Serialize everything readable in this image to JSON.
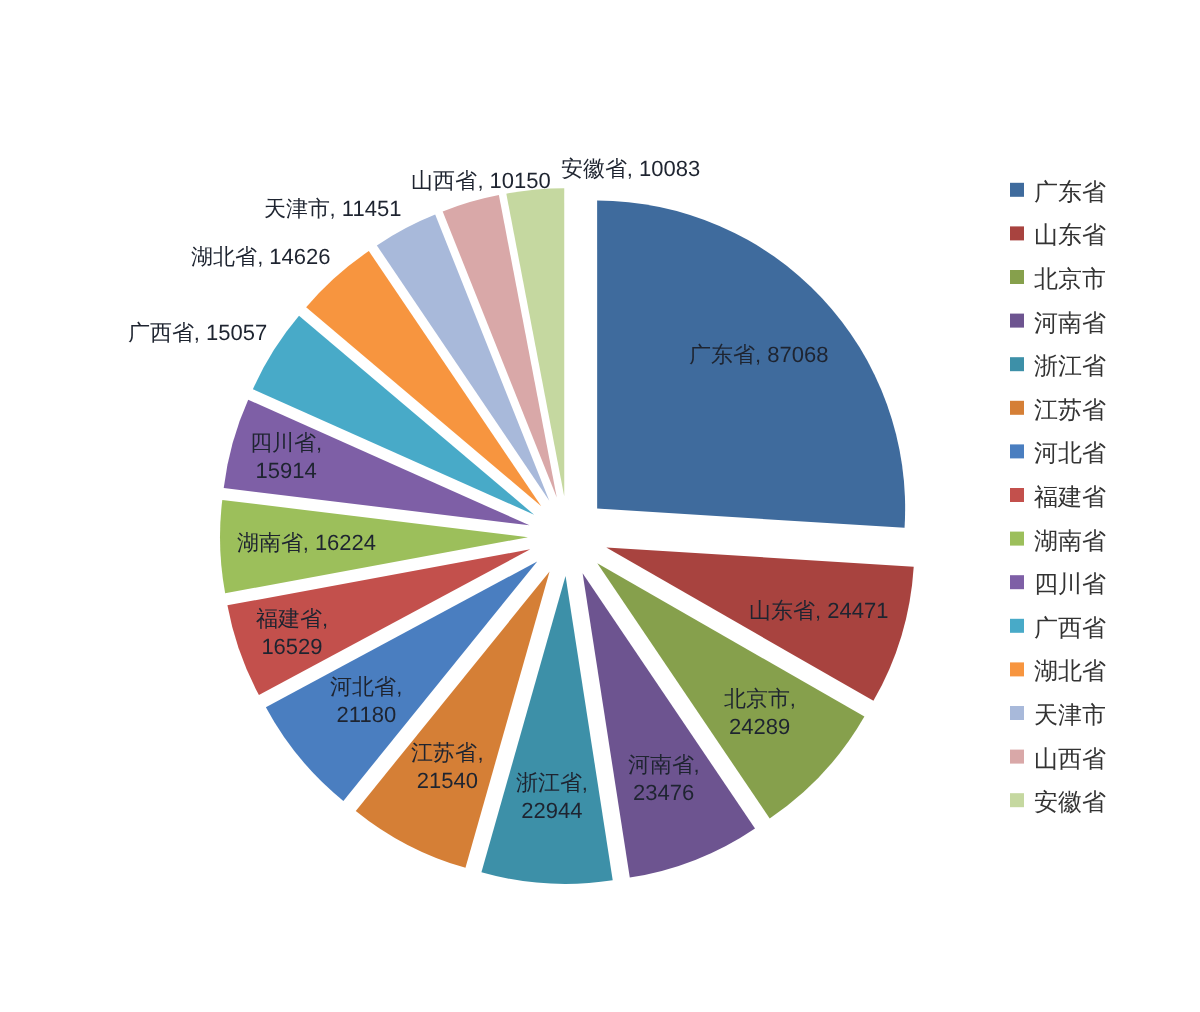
{
  "chart_data": {
    "type": "pie",
    "categories": [
      "广东省",
      "山东省",
      "北京市",
      "河南省",
      "浙江省",
      "江苏省",
      "河北省",
      "福建省",
      "湖南省",
      "四川省",
      "广西省",
      "湖北省",
      "天津市",
      "山西省",
      "安徽省"
    ],
    "values": [
      87068,
      24471,
      24289,
      23476,
      22944,
      21540,
      21180,
      16529,
      16224,
      15914,
      15057,
      14626,
      11451,
      10150,
      10083
    ],
    "value_labels": [
      "广东省, 87068",
      "山东省, 24471",
      "北京市, 24289",
      "河南省, 23476",
      "浙江省, 22944",
      "江苏省, 21540",
      "河北省, 21180",
      "福建省, 16529",
      "湖南省, 16224",
      "四川省, 15914",
      "广西省, 15057",
      "湖北省, 14626",
      "天津市, 11451",
      "山西省, 10150",
      "安徽省, 10083"
    ],
    "colors": [
      "#3f6b9d",
      "#a8433f",
      "#86a04c",
      "#6d5490",
      "#3d90a8",
      "#d57f36",
      "#4a7ec0",
      "#c3504c",
      "#9cbf5b",
      "#7e5fa6",
      "#48aac8",
      "#f7953f",
      "#a8b9da",
      "#d9a8a8",
      "#c5d8a0"
    ],
    "legend": "right"
  }
}
